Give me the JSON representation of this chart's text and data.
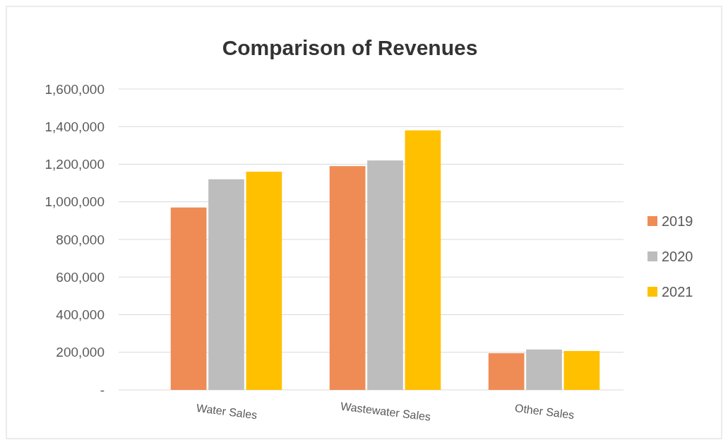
{
  "chart_data": {
    "type": "bar",
    "title": "Comparison of Revenues",
    "categories": [
      "Water Sales",
      "Wastewater Sales",
      "Other Sales"
    ],
    "series": [
      {
        "name": "2019",
        "color": "#ef8c55",
        "values": [
          970000,
          1190000,
          195000
        ]
      },
      {
        "name": "2020",
        "color": "#bdbdbd",
        "values": [
          1120000,
          1220000,
          215000
        ]
      },
      {
        "name": "2021",
        "color": "#ffc000",
        "values": [
          1160000,
          1380000,
          207000
        ]
      }
    ],
    "ylim": [
      0,
      1600000
    ],
    "yticks": [
      {
        "value": 0,
        "label": "-"
      },
      {
        "value": 200000,
        "label": "200,000"
      },
      {
        "value": 400000,
        "label": "400,000"
      },
      {
        "value": 600000,
        "label": "600,000"
      },
      {
        "value": 800000,
        "label": "800,000"
      },
      {
        "value": 1000000,
        "label": "1,000,000"
      },
      {
        "value": 1200000,
        "label": "1,200,000"
      },
      {
        "value": 1400000,
        "label": "1,400,000"
      },
      {
        "value": 1600000,
        "label": "1,600,000"
      }
    ],
    "grid": "y",
    "legend": "right"
  }
}
